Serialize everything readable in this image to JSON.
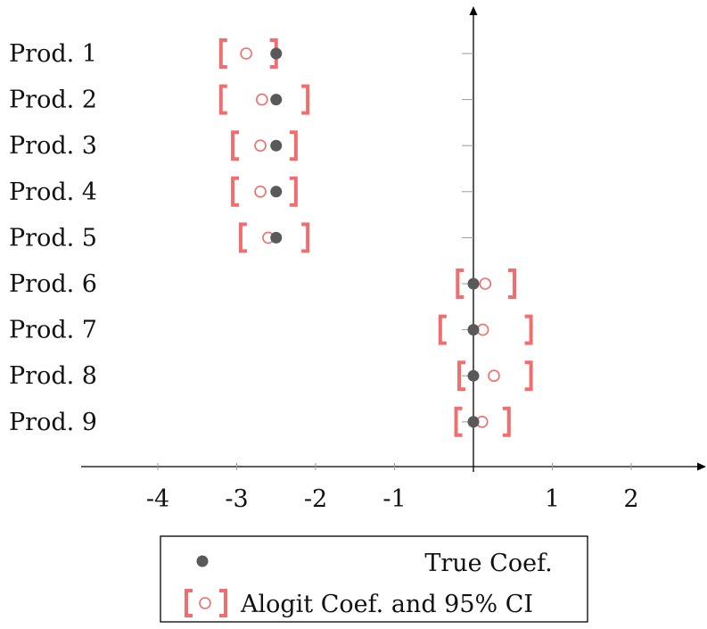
{
  "chart_data": {
    "type": "scatter",
    "categories": [
      "Prod. 1",
      "Prod. 2",
      "Prod. 3",
      "Prod. 4",
      "Prod. 5",
      "Prod. 6",
      "Prod. 7",
      "Prod. 8",
      "Prod. 9"
    ],
    "x_ticks": [
      "-4",
      "-3",
      "-2",
      "-1",
      "1",
      "2"
    ],
    "x_tick_values": [
      -4,
      -3,
      -2,
      -1,
      1,
      2
    ],
    "xlim": [
      -4.9,
      3.0
    ],
    "grid": false,
    "legend_position": "bottom-center",
    "series": [
      {
        "name": "True Coef.",
        "marker": "filled-circle",
        "color": "#595959",
        "values": [
          -2.5,
          -2.5,
          -2.5,
          -2.5,
          -2.5,
          0.0,
          0.0,
          0.0,
          0.0
        ]
      },
      {
        "name": "Alogit Coef. and 95% CI",
        "marker": "open-circle",
        "color": "#f26d6d",
        "values": [
          -2.88,
          -2.68,
          -2.7,
          -2.7,
          -2.6,
          0.15,
          0.12,
          0.26,
          0.11
        ],
        "ci_low": [
          -3.2,
          -3.2,
          -3.05,
          -3.05,
          -2.95,
          -0.2,
          -0.42,
          -0.18,
          -0.22
        ],
        "ci_high": [
          -2.5,
          -2.1,
          -2.25,
          -2.25,
          -2.1,
          0.52,
          0.73,
          0.73,
          0.45
        ]
      }
    ]
  }
}
